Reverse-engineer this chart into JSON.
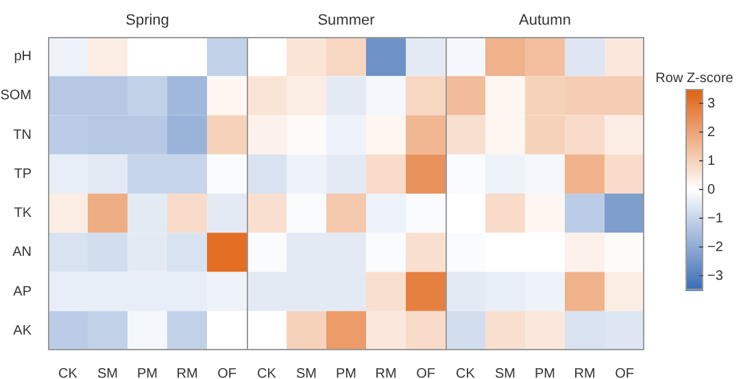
{
  "chart_data": {
    "type": "heatmap",
    "annotations": [
      "Spring",
      "Summer",
      "Autumn"
    ],
    "categories": [
      "CK",
      "SM",
      "PM",
      "RM",
      "OF",
      "CK",
      "SM",
      "PM",
      "RM",
      "OF",
      "CK",
      "SM",
      "PM",
      "RM",
      "OF"
    ],
    "y_categories": [
      "pH",
      "SOM",
      "TN",
      "TP",
      "TK",
      "AN",
      "AP",
      "AK"
    ],
    "clabel": "Row Z-score",
    "clim": [
      -3.5,
      3.5
    ],
    "cticks": [
      {
        "value": -3,
        "label": "−3"
      },
      {
        "value": -2,
        "label": "−2"
      },
      {
        "value": -1,
        "label": "−1"
      },
      0,
      1,
      2,
      3
    ],
    "cells": [
      [
        -0.3,
        0.4,
        0,
        0,
        -1.1,
        0,
        0.6,
        0.9,
        -2.6,
        -0.5,
        -0.2,
        1.7,
        1.4,
        -0.6,
        0.5
      ],
      [
        -1.3,
        -1.3,
        -1.1,
        -1.7,
        0.2,
        0.6,
        0.4,
        -0.5,
        -0.2,
        0.9,
        1.5,
        0.2,
        1.0,
        1.1,
        1.1
      ],
      [
        -1.2,
        -1.3,
        -1.3,
        -1.8,
        1.0,
        0.3,
        0.1,
        -0.3,
        0.2,
        1.6,
        0.7,
        0.2,
        1.0,
        0.8,
        0.4
      ],
      [
        -0.4,
        -0.5,
        -1.0,
        -1.0,
        -0.1,
        -0.7,
        -0.3,
        -0.5,
        0.8,
        2.4,
        -0.1,
        -0.3,
        -0.2,
        1.7,
        0.8
      ],
      [
        0.4,
        1.8,
        -0.5,
        0.8,
        -0.5,
        0.7,
        -0.1,
        1.2,
        -0.3,
        -0.1,
        0,
        0.8,
        0.2,
        -1.2,
        -2.3
      ],
      [
        -0.7,
        -0.8,
        -0.5,
        -0.7,
        3.2,
        -0.1,
        -0.5,
        -0.5,
        -0.1,
        0.7,
        -0.1,
        0,
        0,
        0.3,
        0.1
      ],
      [
        -0.4,
        -0.4,
        -0.4,
        -0.4,
        -0.3,
        -0.5,
        -0.5,
        -0.5,
        0.7,
        2.8,
        -0.5,
        -0.4,
        -0.3,
        1.7,
        0.4
      ],
      [
        -1.2,
        -1.1,
        -0.2,
        -1.1,
        0,
        0,
        1.0,
        2.2,
        0.5,
        0.8,
        -0.8,
        0.7,
        0.5,
        -0.7,
        -0.6
      ]
    ]
  }
}
